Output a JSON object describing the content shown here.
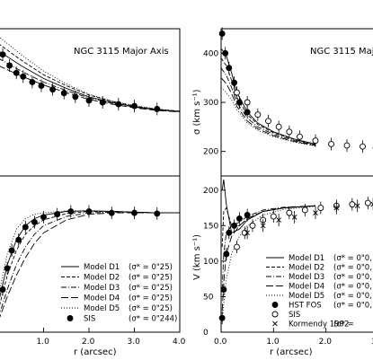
{
  "figure": {
    "panels": [
      {
        "id": "top-left",
        "title": "NGC 3115  Major Axis",
        "xlim": [
          0.0,
          4.0
        ],
        "ylim": [
          0,
          400
        ],
        "xticks": [],
        "yticks": []
      },
      {
        "id": "bottom-left",
        "title": "",
        "xlabel": "r  (arcsec)",
        "xlim": [
          0.0,
          4.0
        ],
        "ylim": [
          0,
          220
        ],
        "xticks": [
          "1.0",
          "2.0",
          "3.0",
          "4.0"
        ],
        "yticks": []
      },
      {
        "id": "top-right",
        "title": "NGC 3115  Major",
        "ylabel": "σ  (km s⁻¹)",
        "xlim": [
          0.0,
          3.0
        ],
        "ylim": [
          150,
          450
        ],
        "xticks": [],
        "yticks": [
          "200",
          "300",
          "400"
        ]
      },
      {
        "id": "bottom-right",
        "title": "",
        "xlabel": "r  (arcsec)",
        "ylabel": "V  (km s⁻¹)",
        "xlim": [
          0.0,
          3.0
        ],
        "ylim": [
          0,
          220
        ],
        "xticks": [
          "0.0",
          "1.0",
          "2.0",
          "3.0"
        ],
        "yticks": [
          "0",
          "50",
          "100",
          "150",
          "200"
        ]
      }
    ],
    "legend_left": [
      {
        "symbol": "solid",
        "label": "Model D1",
        "param": "(σ* = 0\"25)"
      },
      {
        "symbol": "dash",
        "label": "Model D2",
        "param": "(σ* = 0\"25)"
      },
      {
        "symbol": "dashdot",
        "label": "Model D3",
        "param": "(σ* = 0\"25)"
      },
      {
        "symbol": "longdash",
        "label": "Model D4",
        "param": "(σ* = 0\"25)"
      },
      {
        "symbol": "dot",
        "label": "Model D5",
        "param": "(σ* = 0\"25)"
      },
      {
        "symbol": "filled-circle",
        "label": "SIS",
        "param": "(σ* = 0\"244)"
      }
    ],
    "legend_right": [
      {
        "symbol": "solid",
        "label": "Model D1",
        "param": "(σ* = 0\"0, ape"
      },
      {
        "symbol": "dash",
        "label": "Model D2",
        "param": "(σ* = 0\"0, ape"
      },
      {
        "symbol": "dashdot",
        "label": "Model D3",
        "param": "(σ* = 0\"0, ape"
      },
      {
        "symbol": "longdash",
        "label": "Model D4",
        "param": "(σ* = 0\"0, ape"
      },
      {
        "symbol": "dot",
        "label": "Model D5",
        "param": "(σ* = 0\"0, ape"
      },
      {
        "symbol": "filled-circle",
        "label": "HST FOS",
        "param": "(σ* = 0\"0, ape"
      },
      {
        "symbol": "open-circle",
        "label": "SIS",
        "param": ""
      },
      {
        "symbol": "cross",
        "label": "Kormendy 1992",
        "param": "(σ* ="
      }
    ]
  },
  "chart_data": [
    {
      "type": "line",
      "panel": "top-left",
      "title": "NGC 3115  Major Axis",
      "xlim": [
        0.0,
        4.0
      ],
      "ylim": [
        0,
        400
      ],
      "series": [
        {
          "name": "Model D1",
          "x": [
            0.0,
            0.5,
            1.0,
            1.5,
            2.0,
            2.5,
            3.0,
            3.5,
            4.0
          ],
          "y": [
            340,
            300,
            265,
            238,
            215,
            200,
            188,
            180,
            175
          ]
        },
        {
          "name": "Model D2",
          "x": [
            0.0,
            0.5,
            1.0,
            1.5,
            2.0,
            2.5,
            3.0,
            3.5,
            4.0
          ],
          "y": [
            360,
            315,
            275,
            245,
            220,
            203,
            190,
            181,
            176
          ]
        },
        {
          "name": "Model D3",
          "x": [
            0.0,
            0.5,
            1.0,
            1.5,
            2.0,
            2.5,
            3.0,
            3.5,
            4.0
          ],
          "y": [
            320,
            285,
            255,
            232,
            212,
            198,
            187,
            180,
            175
          ]
        },
        {
          "name": "Model D4",
          "x": [
            0.0,
            0.5,
            1.0,
            1.5,
            2.0,
            2.5,
            3.0,
            3.5,
            4.0
          ],
          "y": [
            300,
            272,
            247,
            226,
            208,
            195,
            185,
            178,
            174
          ]
        },
        {
          "name": "Model D5",
          "x": [
            0.0,
            0.5,
            1.0,
            1.5,
            2.0,
            2.5,
            3.0,
            3.5,
            4.0
          ],
          "y": [
            380,
            330,
            285,
            250,
            222,
            204,
            191,
            182,
            176
          ]
        },
        {
          "name": "SIS",
          "points": [
            [
              0.1,
              330
            ],
            [
              0.25,
              300
            ],
            [
              0.4,
              280
            ],
            [
              0.55,
              270
            ],
            [
              0.75,
              255
            ],
            [
              0.95,
              245
            ],
            [
              1.2,
              235
            ],
            [
              1.45,
              225
            ],
            [
              1.7,
              215
            ],
            [
              2.0,
              205
            ],
            [
              2.3,
              200
            ],
            [
              2.65,
              195
            ],
            [
              3.0,
              190
            ],
            [
              3.5,
              182
            ]
          ]
        }
      ]
    },
    {
      "type": "line",
      "panel": "bottom-left",
      "xlabel": "r  (arcsec)",
      "xlim": [
        0.0,
        4.0
      ],
      "ylim": [
        0,
        220
      ],
      "series": [
        {
          "name": "Model D1",
          "x": [
            0.0,
            0.2,
            0.4,
            0.6,
            0.8,
            1.0,
            1.5,
            2.0,
            2.5,
            3.0,
            3.5,
            4.0
          ],
          "y": [
            40,
            95,
            130,
            150,
            160,
            165,
            170,
            171,
            170,
            169,
            168,
            168
          ]
        },
        {
          "name": "Model D2",
          "x": [
            0.0,
            0.2,
            0.4,
            0.6,
            0.8,
            1.0,
            1.5,
            2.0,
            2.5,
            3.0,
            3.5,
            4.0
          ],
          "y": [
            30,
            80,
            115,
            138,
            150,
            158,
            167,
            170,
            170,
            169,
            168,
            168
          ]
        },
        {
          "name": "Model D3",
          "x": [
            0.0,
            0.2,
            0.4,
            0.6,
            0.8,
            1.0,
            1.5,
            2.0,
            2.5,
            3.0,
            3.5,
            4.0
          ],
          "y": [
            20,
            60,
            95,
            120,
            138,
            150,
            163,
            168,
            169,
            169,
            168,
            168
          ]
        },
        {
          "name": "Model D4",
          "x": [
            0.0,
            0.2,
            0.4,
            0.6,
            0.8,
            1.0,
            1.5,
            2.0,
            2.5,
            3.0,
            3.5,
            4.0
          ],
          "y": [
            15,
            50,
            80,
            105,
            125,
            140,
            158,
            166,
            168,
            168,
            168,
            168
          ]
        },
        {
          "name": "Model D5",
          "x": [
            0.0,
            0.2,
            0.4,
            0.6,
            0.8,
            1.0,
            1.5,
            2.0,
            2.5,
            3.0,
            3.5,
            4.0
          ],
          "y": [
            50,
            110,
            145,
            160,
            166,
            168,
            171,
            171,
            170,
            169,
            168,
            168
          ]
        },
        {
          "name": "SIS",
          "points": [
            [
              0.1,
              60
            ],
            [
              0.2,
              90
            ],
            [
              0.3,
              115
            ],
            [
              0.45,
              130
            ],
            [
              0.6,
              148
            ],
            [
              0.8,
              155
            ],
            [
              1.0,
              162
            ],
            [
              1.3,
              166
            ],
            [
              1.6,
              170
            ],
            [
              2.0,
              170
            ],
            [
              2.5,
              168
            ],
            [
              3.0,
              168
            ],
            [
              3.5,
              167
            ]
          ]
        }
      ]
    },
    {
      "type": "line",
      "panel": "top-right",
      "title": "NGC 3115  Major",
      "ylabel": "σ  (km s⁻¹)",
      "xlim": [
        0.0,
        3.0
      ],
      "ylim": [
        150,
        450
      ],
      "series": [
        {
          "name": "Model D1",
          "x": [
            0.0,
            0.1,
            0.2,
            0.3,
            0.5,
            0.7,
            1.0,
            1.4,
            1.8
          ],
          "y": [
            410,
            395,
            360,
            320,
            280,
            258,
            240,
            225,
            215
          ]
        },
        {
          "name": "Model D2",
          "x": [
            0.0,
            0.1,
            0.2,
            0.3,
            0.5,
            0.7,
            1.0,
            1.4,
            1.8
          ],
          "y": [
            390,
            375,
            345,
            310,
            275,
            255,
            238,
            224,
            214
          ]
        },
        {
          "name": "Model D3",
          "x": [
            0.0,
            0.1,
            0.2,
            0.3,
            0.5,
            0.7,
            1.0,
            1.4,
            1.8
          ],
          "y": [
            370,
            355,
            330,
            300,
            268,
            250,
            235,
            222,
            213
          ]
        },
        {
          "name": "Model D4",
          "x": [
            0.0,
            0.1,
            0.2,
            0.3,
            0.5,
            0.7,
            1.0,
            1.4,
            1.8
          ],
          "y": [
            350,
            338,
            318,
            292,
            262,
            246,
            232,
            220,
            212
          ]
        },
        {
          "name": "Model D5",
          "x": [
            0.0,
            0.1,
            0.2,
            0.3,
            0.5,
            0.7,
            1.0,
            1.4,
            1.8
          ],
          "y": [
            330,
            320,
            305,
            285,
            258,
            243,
            230,
            219,
            211
          ]
        },
        {
          "name": "HST FOS",
          "points": [
            [
              0.02,
              440
            ],
            [
              0.08,
              400
            ],
            [
              0.15,
              370
            ],
            [
              0.25,
              340
            ],
            [
              0.35,
              300
            ],
            [
              0.5,
              280
            ]
          ]
        },
        {
          "name": "SIS",
          "points": [
            [
              0.3,
              320
            ],
            [
              0.5,
              300
            ],
            [
              0.7,
              275
            ],
            [
              0.9,
              262
            ],
            [
              1.1,
              250
            ],
            [
              1.3,
              240
            ],
            [
              1.5,
              230
            ],
            [
              1.8,
              222
            ],
            [
              2.1,
              215
            ],
            [
              2.4,
              212
            ],
            [
              2.7,
              210
            ],
            [
              2.95,
              207
            ]
          ]
        }
      ]
    },
    {
      "type": "line",
      "panel": "bottom-right",
      "xlabel": "r  (arcsec)",
      "ylabel": "V  (km s⁻¹)",
      "xlim": [
        0.0,
        3.0
      ],
      "ylim": [
        0,
        220
      ],
      "series": [
        {
          "name": "Model D1",
          "x": [
            0.02,
            0.05,
            0.1,
            0.2,
            0.35,
            0.5,
            0.8,
            1.2,
            1.8
          ],
          "y": [
            200,
            215,
            180,
            140,
            145,
            158,
            170,
            175,
            178
          ]
        },
        {
          "name": "Model D2",
          "x": [
            0.02,
            0.05,
            0.1,
            0.2,
            0.35,
            0.5,
            0.8,
            1.2,
            1.8
          ],
          "y": [
            120,
            170,
            175,
            150,
            150,
            160,
            170,
            175,
            178
          ]
        },
        {
          "name": "Model D3",
          "x": [
            0.02,
            0.05,
            0.1,
            0.2,
            0.35,
            0.5,
            0.8,
            1.2,
            1.8
          ],
          "y": [
            60,
            110,
            140,
            150,
            155,
            163,
            172,
            176,
            178
          ]
        },
        {
          "name": "Model D4",
          "x": [
            0.02,
            0.05,
            0.1,
            0.2,
            0.35,
            0.5,
            0.8,
            1.2,
            1.8
          ],
          "y": [
            30,
            70,
            110,
            135,
            150,
            160,
            170,
            175,
            178
          ]
        },
        {
          "name": "Model D5",
          "x": [
            0.02,
            0.05,
            0.1,
            0.2,
            0.35,
            0.5,
            0.8,
            1.2,
            1.8
          ],
          "y": [
            15,
            40,
            75,
            110,
            135,
            150,
            165,
            173,
            177
          ]
        },
        {
          "name": "HST FOS",
          "points": [
            [
              0.02,
              20
            ],
            [
              0.05,
              60
            ],
            [
              0.1,
              110
            ],
            [
              0.15,
              140
            ],
            [
              0.25,
              150
            ],
            [
              0.35,
              160
            ],
            [
              0.5,
              165
            ]
          ]
        },
        {
          "name": "SIS",
          "points": [
            [
              0.3,
              120
            ],
            [
              0.45,
              140
            ],
            [
              0.6,
              150
            ],
            [
              0.8,
              158
            ],
            [
              1.0,
              163
            ],
            [
              1.3,
              168
            ],
            [
              1.6,
              172
            ],
            [
              1.9,
              175
            ],
            [
              2.2,
              178
            ],
            [
              2.5,
              180
            ],
            [
              2.8,
              182
            ]
          ]
        },
        {
          "name": "Kormendy 1992",
          "points": [
            [
              0.5,
              140
            ],
            [
              0.8,
              150
            ],
            [
              1.1,
              158
            ],
            [
              1.4,
              162
            ],
            [
              1.8,
              168
            ],
            [
              2.2,
              175
            ],
            [
              2.6,
              178
            ],
            [
              2.9,
              180
            ]
          ]
        }
      ]
    }
  ]
}
